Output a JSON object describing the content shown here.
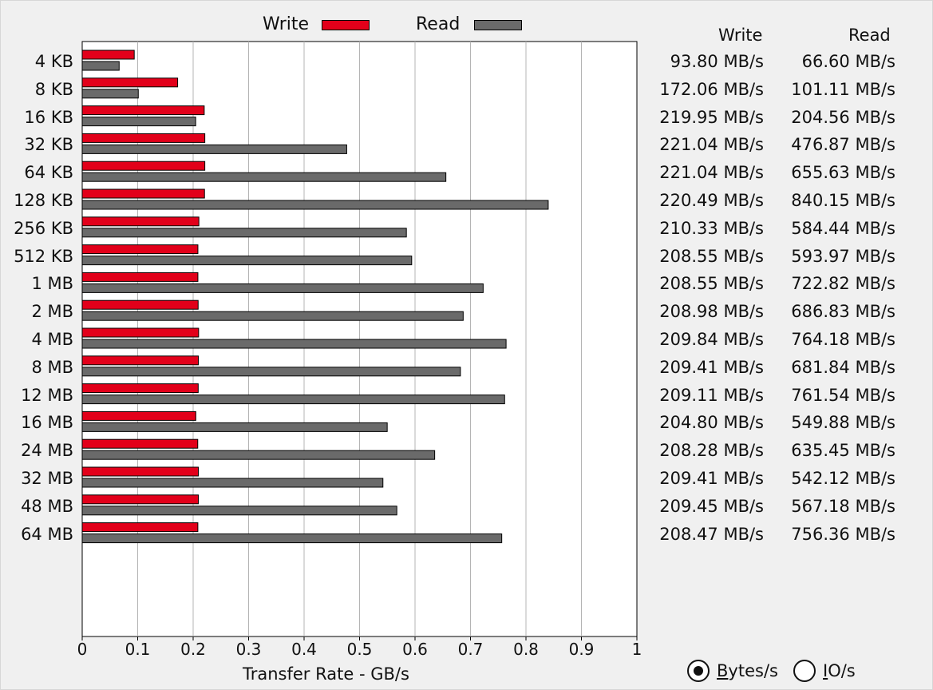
{
  "chart_data": {
    "type": "bar",
    "orientation": "horizontal",
    "categories": [
      "4 KB",
      "8 KB",
      "16 KB",
      "32 KB",
      "64 KB",
      "128 KB",
      "256 KB",
      "512 KB",
      "1 MB",
      "2 MB",
      "4 MB",
      "8 MB",
      "12 MB",
      "16 MB",
      "24 MB",
      "32 MB",
      "48 MB",
      "64 MB"
    ],
    "series": [
      {
        "name": "Write",
        "color": "#e2001a",
        "values": [
          0.0938,
          0.17206,
          0.21995,
          0.22104,
          0.22104,
          0.22049,
          0.21033,
          0.20855,
          0.20855,
          0.20898,
          0.20984,
          0.20941,
          0.20911,
          0.2048,
          0.20828,
          0.20941,
          0.20945,
          0.20847
        ],
        "labels": [
          "93.80 MB/s",
          "172.06 MB/s",
          "219.95 MB/s",
          "221.04 MB/s",
          "221.04 MB/s",
          "220.49 MB/s",
          "210.33 MB/s",
          "208.55 MB/s",
          "208.55 MB/s",
          "208.98 MB/s",
          "209.84 MB/s",
          "209.41 MB/s",
          "209.11 MB/s",
          "204.80 MB/s",
          "208.28 MB/s",
          "209.41 MB/s",
          "209.45 MB/s",
          "208.47 MB/s"
        ]
      },
      {
        "name": "Read",
        "color": "#6a6a6a",
        "values": [
          0.0666,
          0.10111,
          0.20456,
          0.47687,
          0.65563,
          0.84015,
          0.58444,
          0.59397,
          0.72282,
          0.68683,
          0.76418,
          0.68184,
          0.76154,
          0.54988,
          0.63545,
          0.54212,
          0.56718,
          0.75636
        ],
        "labels": [
          "66.60 MB/s",
          "101.11 MB/s",
          "204.56 MB/s",
          "476.87 MB/s",
          "655.63 MB/s",
          "840.15 MB/s",
          "584.44 MB/s",
          "593.97 MB/s",
          "722.82 MB/s",
          "686.83 MB/s",
          "764.18 MB/s",
          "681.84 MB/s",
          "761.54 MB/s",
          "549.88 MB/s",
          "635.45 MB/s",
          "542.12 MB/s",
          "567.18 MB/s",
          "756.36 MB/s"
        ]
      }
    ],
    "xlim": [
      0,
      1
    ],
    "xticks": [
      "0",
      "0.1",
      "0.2",
      "0.3",
      "0.4",
      "0.5",
      "0.6",
      "0.7",
      "0.8",
      "0.9",
      "1"
    ],
    "xlabel": "Transfer Rate - GB/s",
    "grid": "vertical",
    "legend": "top"
  },
  "table": {
    "write_header": "Write",
    "read_header": "Read"
  },
  "units": {
    "bytes_label_underlined": "B",
    "bytes_label_rest": "ytes/s",
    "io_label_underlined": "I",
    "io_label_rest": "O/s",
    "selected": "bytes"
  }
}
